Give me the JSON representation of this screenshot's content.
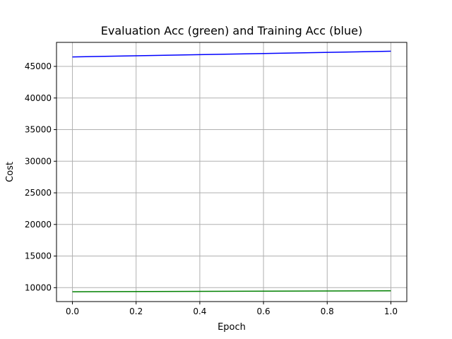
{
  "chart_data": {
    "type": "line",
    "title": "Evaluation Acc (green) and Training Acc (blue)",
    "xlabel": "Epoch",
    "ylabel": "Cost",
    "xlim": [
      -0.05,
      1.05
    ],
    "ylim": [
      7800,
      48800
    ],
    "grid": true,
    "x_ticks": [
      0.0,
      0.2,
      0.4,
      0.6,
      0.8,
      1.0
    ],
    "x_tick_labels": [
      "0.0",
      "0.2",
      "0.4",
      "0.6",
      "0.8",
      "1.0"
    ],
    "y_ticks": [
      10000,
      15000,
      20000,
      25000,
      30000,
      35000,
      40000,
      45000
    ],
    "y_tick_labels": [
      "10000",
      "15000",
      "20000",
      "25000",
      "30000",
      "35000",
      "40000",
      "45000"
    ],
    "x": [
      0,
      1
    ],
    "series": [
      {
        "color": "#0000ff",
        "values": [
          46500,
          47400
        ]
      },
      {
        "color": "#008000",
        "values": [
          9350,
          9500
        ]
      }
    ]
  }
}
